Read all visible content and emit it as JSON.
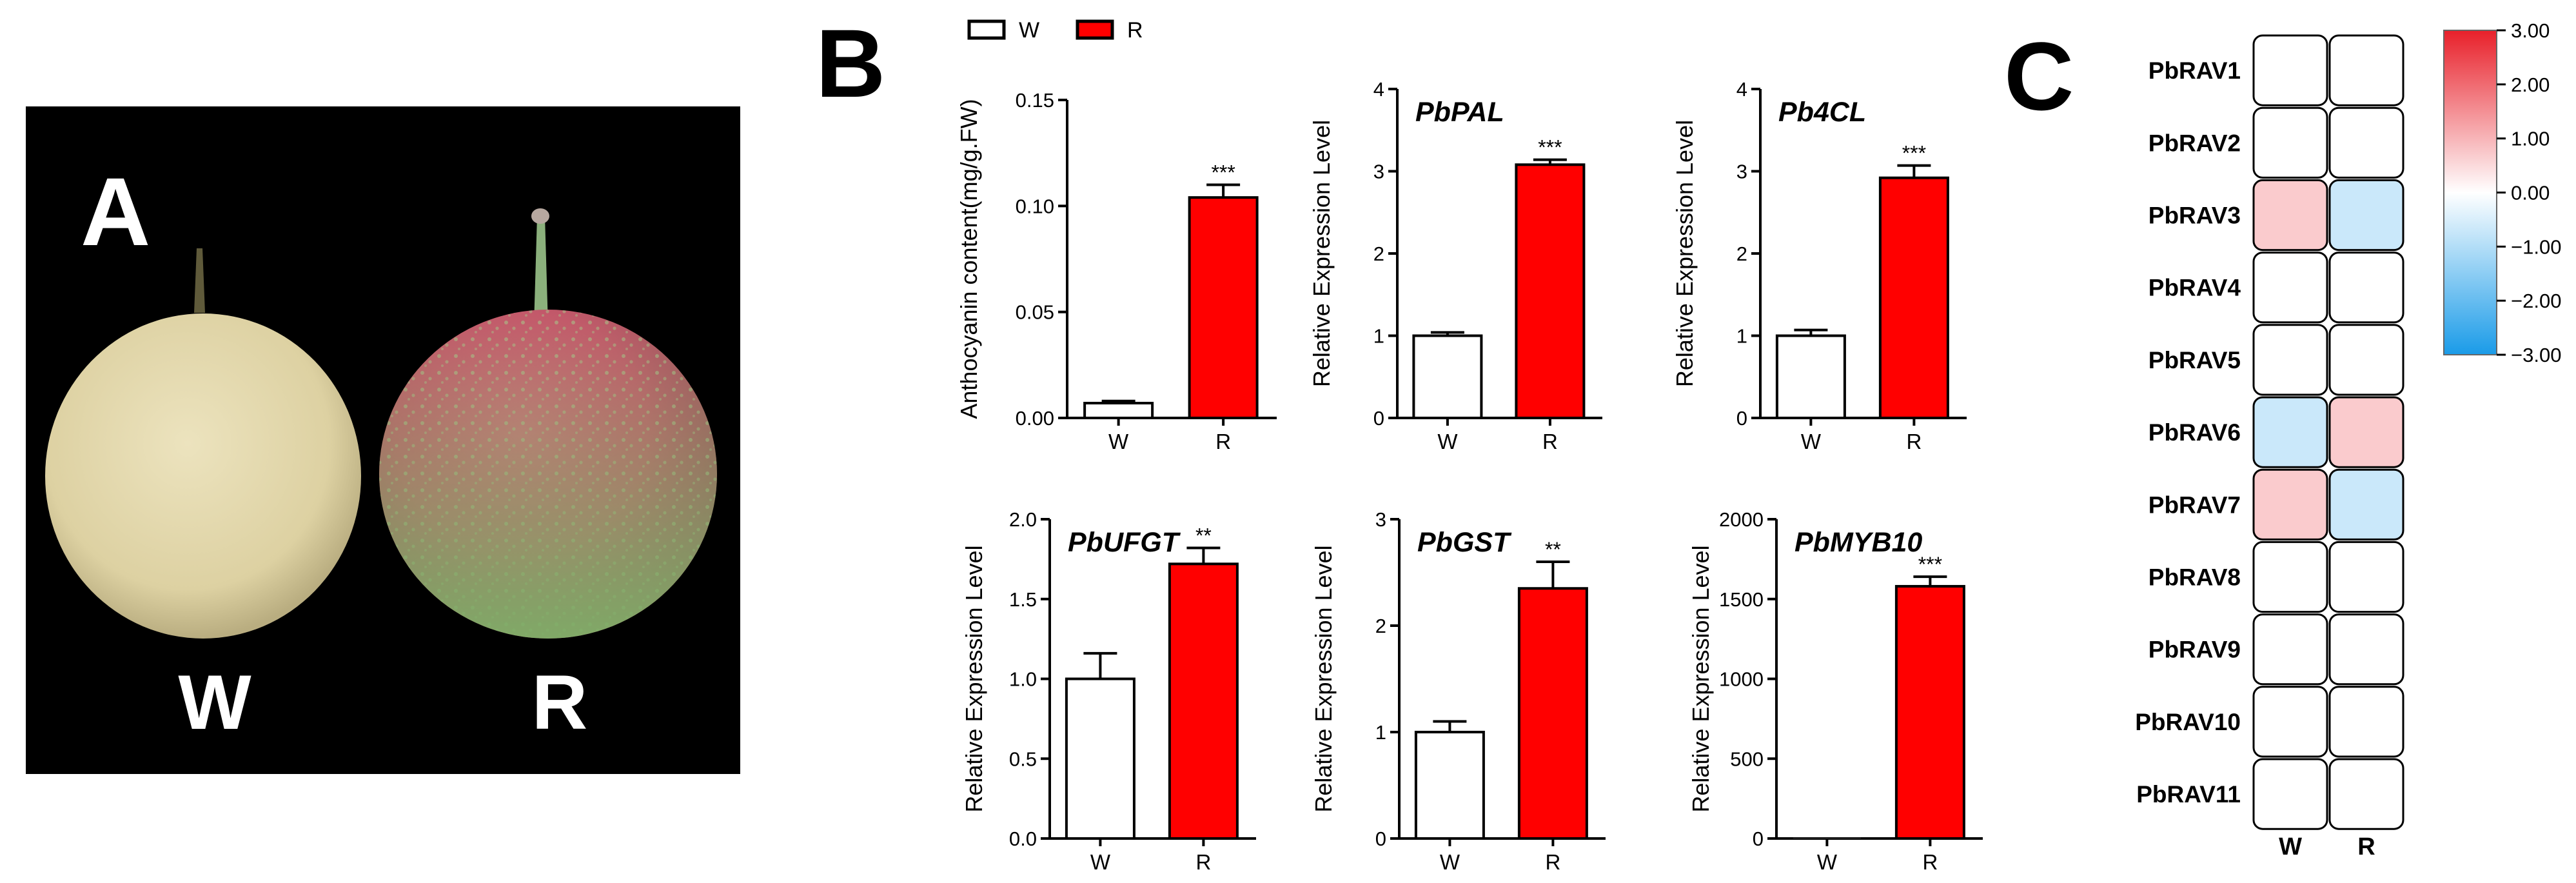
{
  "panel_a": {
    "label": "A",
    "fruit_labels": [
      "W",
      "R"
    ],
    "colors": {
      "background": "#000000",
      "white_fruit": "#e6dcb4",
      "red_fruit": "#c4586a",
      "green_base": "#7fae68"
    }
  },
  "panel_b": {
    "label": "B",
    "legend": [
      {
        "name": "W",
        "color": "#ffffff"
      },
      {
        "name": "R",
        "color": "#ff0000"
      }
    ]
  },
  "panel_c": {
    "label": "C"
  },
  "chart_data": [
    {
      "type": "bar",
      "title": "",
      "categories": [
        "W",
        "R"
      ],
      "values": [
        0.007,
        0.104
      ],
      "errors": [
        0.001,
        0.006
      ],
      "significance": [
        "",
        "***"
      ],
      "ylabel": "Anthocyanin content(mg/g.FW)",
      "ylim": [
        0,
        0.15
      ],
      "yticks": [
        "0.00",
        "0.05",
        "0.10",
        "0.15"
      ],
      "colors": [
        "#ffffff",
        "#ff0000"
      ]
    },
    {
      "type": "bar",
      "title": "PbPAL",
      "categories": [
        "W",
        "R"
      ],
      "values": [
        1.0,
        3.08
      ],
      "errors": [
        0.04,
        0.06
      ],
      "significance": [
        "",
        "***"
      ],
      "ylabel": "Relative Expression Level",
      "ylim": [
        0,
        4
      ],
      "yticks": [
        "0",
        "1",
        "2",
        "3",
        "4"
      ],
      "colors": [
        "#ffffff",
        "#ff0000"
      ]
    },
    {
      "type": "bar",
      "title": "Pb4CL",
      "categories": [
        "W",
        "R"
      ],
      "values": [
        1.0,
        2.92
      ],
      "errors": [
        0.07,
        0.15
      ],
      "significance": [
        "",
        "***"
      ],
      "ylabel": "Relative Expression Level",
      "ylim": [
        0,
        4
      ],
      "yticks": [
        "0",
        "1",
        "2",
        "3",
        "4"
      ],
      "colors": [
        "#ffffff",
        "#ff0000"
      ]
    },
    {
      "type": "bar",
      "title": "PbUFGT",
      "categories": [
        "W",
        "R"
      ],
      "values": [
        1.0,
        1.72
      ],
      "errors": [
        0.16,
        0.1
      ],
      "significance": [
        "",
        "**"
      ],
      "ylabel": "Relative Expression Level",
      "ylim": [
        0,
        2.0
      ],
      "yticks": [
        "0.0",
        "0.5",
        "1.0",
        "1.5",
        "2.0"
      ],
      "colors": [
        "#ffffff",
        "#ff0000"
      ]
    },
    {
      "type": "bar",
      "title": "PbGST",
      "categories": [
        "W",
        "R"
      ],
      "values": [
        1.0,
        2.35
      ],
      "errors": [
        0.1,
        0.25
      ],
      "significance": [
        "",
        "**"
      ],
      "ylabel": "Relative Expression Level",
      "ylim": [
        0,
        3
      ],
      "yticks": [
        "0",
        "1",
        "2",
        "3"
      ],
      "colors": [
        "#ffffff",
        "#ff0000"
      ]
    },
    {
      "type": "bar",
      "title": "PbMYB10",
      "categories": [
        "W",
        "R"
      ],
      "values": [
        1,
        1580
      ],
      "errors": [
        0,
        60
      ],
      "significance": [
        "",
        "***"
      ],
      "ylabel": "Relative Expression Level",
      "ylim": [
        0,
        2000
      ],
      "yticks": [
        "0",
        "500",
        "1000",
        "1500",
        "2000"
      ],
      "colors": [
        "#ffffff",
        "#ff0000"
      ]
    },
    {
      "type": "heatmap",
      "title": "",
      "rows": [
        "PbRAV1",
        "PbRAV2",
        "PbRAV3",
        "PbRAV4",
        "PbRAV5",
        "PbRAV6",
        "PbRAV7",
        "PbRAV8",
        "PbRAV9",
        "PbRAV10",
        "PbRAV11"
      ],
      "columns": [
        "W",
        "R"
      ],
      "values": [
        [
          0,
          0
        ],
        [
          0,
          0
        ],
        [
          0.7,
          -0.7
        ],
        [
          0,
          0
        ],
        [
          0,
          0
        ],
        [
          -0.7,
          0.7
        ],
        [
          0.7,
          -0.7
        ],
        [
          0,
          0
        ],
        [
          0,
          0
        ],
        [
          0,
          0
        ],
        [
          0,
          0
        ]
      ],
      "colorbar_range": [
        -3,
        3
      ],
      "colorbar_ticks": [
        "3.00",
        "2.00",
        "1.00",
        "0.00",
        "−1.00",
        "−2.00",
        "−3.00"
      ],
      "colorbar_colors": {
        "high": "#e8202a",
        "mid": "#ffffff",
        "low": "#1a9be8"
      }
    }
  ]
}
